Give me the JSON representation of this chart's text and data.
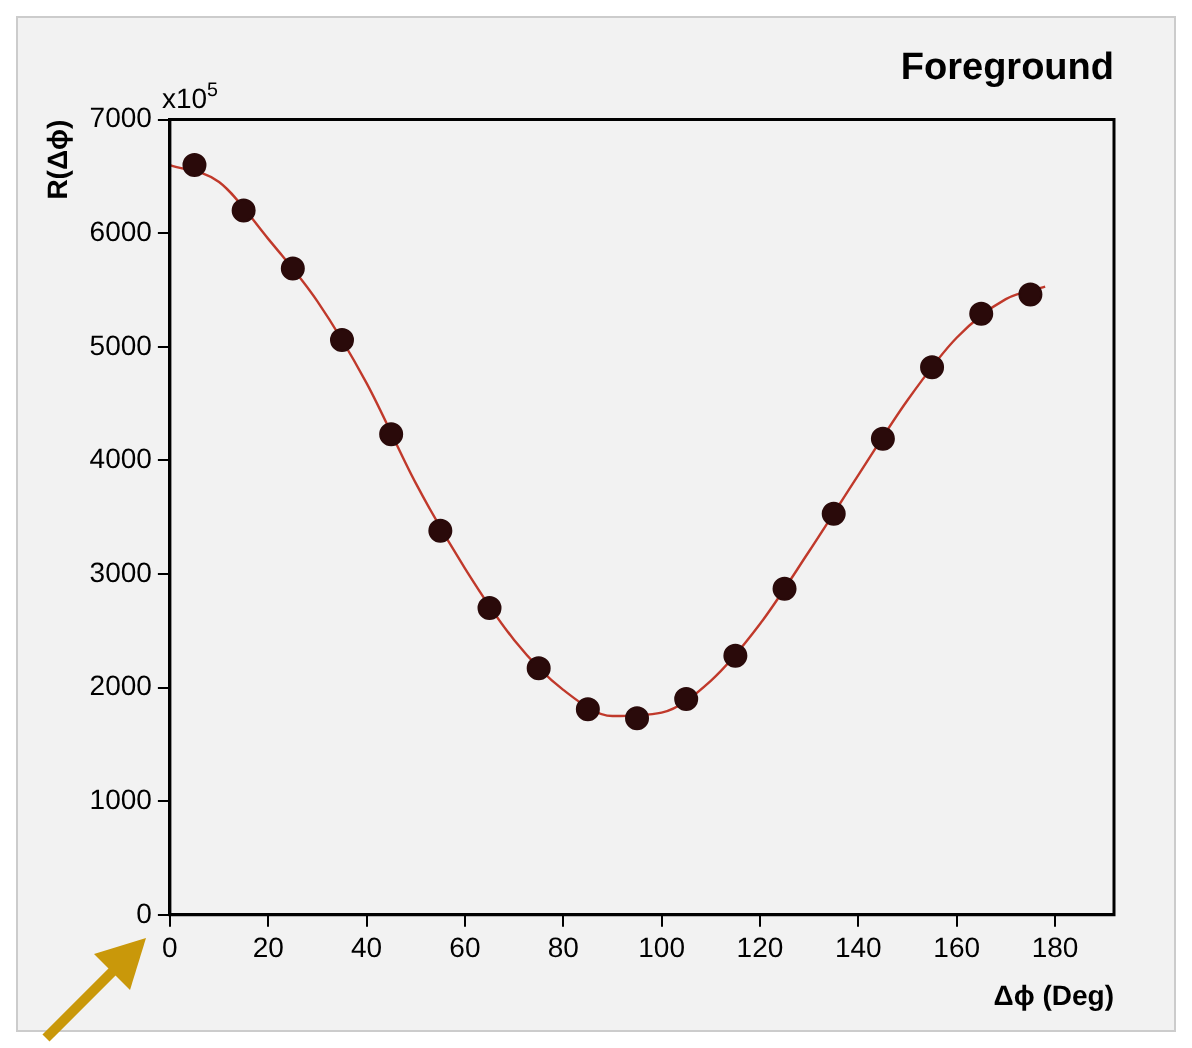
{
  "chart_data": {
    "type": "scatter",
    "title": "Foreground",
    "xlabel": "Δϕ (Deg)",
    "ylabel": "R(Δϕ)",
    "annotations": [
      "x10$^{5}$"
    ],
    "x": [
      5,
      15,
      25,
      35,
      45,
      55,
      65,
      75,
      85,
      95,
      105,
      115,
      125,
      135,
      145,
      155,
      165,
      175
    ],
    "series": [
      {
        "color": "#2a0a0a",
        "marker": "circle",
        "values": [
          6600,
          6200,
          5690,
          5060,
          4230,
          3380,
          2700,
          2170,
          1810,
          1730,
          1900,
          2280,
          2870,
          3530,
          4190,
          4820,
          5290,
          5460
        ]
      },
      {
        "type": "line",
        "color": "#c0392b",
        "marker": "none",
        "x": [
          0,
          10,
          20,
          30,
          40,
          50,
          60,
          70,
          80,
          90,
          100,
          110,
          120,
          130,
          140,
          150,
          160,
          170,
          178
        ],
        "values": [
          6600,
          6450,
          5950,
          5400,
          4680,
          3800,
          3050,
          2420,
          1980,
          1750,
          1780,
          2060,
          2560,
          3200,
          3870,
          4530,
          5080,
          5420,
          5530
        ]
      }
    ],
    "xlim": [
      0,
      192
    ],
    "xticks": [
      0,
      20,
      40,
      60,
      80,
      100,
      120,
      140,
      160,
      180
    ],
    "ylim": [
      0,
      7000
    ],
    "yticks": [
      0,
      1000,
      2000,
      3000,
      4000,
      5000,
      6000,
      7000
    ],
    "grid": false,
    "legend": false
  }
}
